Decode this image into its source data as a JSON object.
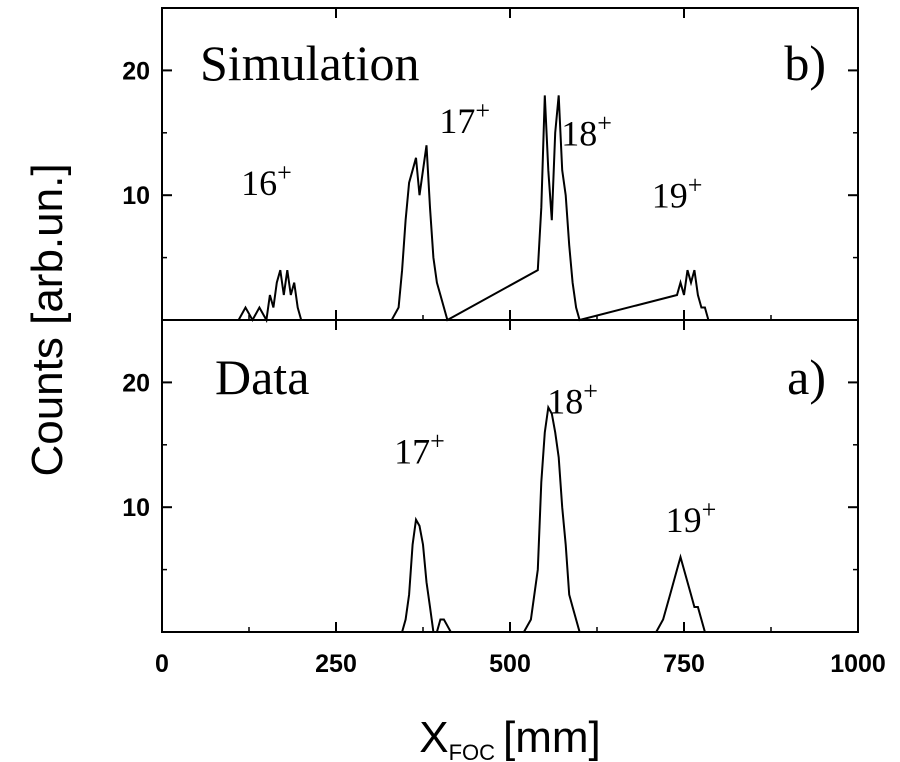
{
  "chart_data": [
    {
      "panel": "b",
      "type": "histogram",
      "title": "Simulation",
      "tag": "b)",
      "xlabel": "X",
      "xlabel_sub": "FOC",
      "xlabel_unit": "[mm]",
      "ylabel": "Counts [arb.un.]",
      "xlim": [
        0,
        1000
      ],
      "ylim": [
        0,
        25
      ],
      "xticks": [
        0,
        250,
        500,
        750,
        1000
      ],
      "yticks": [
        10,
        20
      ],
      "grid": false,
      "annotations": [
        {
          "text": "16",
          "sup": "+",
          "x": 150,
          "y": 10
        },
        {
          "text": "17",
          "sup": "+",
          "x": 435,
          "y": 15
        },
        {
          "text": "18",
          "sup": "+",
          "x": 610,
          "y": 14
        },
        {
          "text": "19",
          "sup": "+",
          "x": 740,
          "y": 9
        }
      ],
      "x": [
        110,
        120,
        130,
        140,
        150,
        155,
        160,
        165,
        170,
        175,
        180,
        185,
        190,
        195,
        200,
        330,
        340,
        345,
        350,
        355,
        360,
        365,
        370,
        375,
        380,
        385,
        390,
        395,
        400,
        405,
        410,
        540,
        545,
        550,
        555,
        560,
        565,
        570,
        575,
        580,
        585,
        590,
        595,
        600,
        740,
        745,
        750,
        755,
        760,
        765,
        770,
        775,
        780,
        785
      ],
      "y": [
        0,
        1,
        0,
        1,
        0,
        2,
        1,
        3,
        4,
        2,
        4,
        2,
        3,
        1,
        0,
        0,
        1,
        4,
        8,
        11,
        12,
        13,
        10,
        12,
        14,
        9,
        5,
        3,
        2,
        1,
        0,
        4,
        9,
        18,
        12,
        8,
        15,
        18,
        12,
        10,
        6,
        3,
        1,
        0,
        2,
        3,
        2,
        4,
        3,
        4,
        2,
        1,
        1,
        0
      ]
    },
    {
      "panel": "a",
      "type": "histogram",
      "title": "Data",
      "tag": "a)",
      "xlabel": "X",
      "xlabel_sub": "FOC",
      "xlabel_unit": "[mm]",
      "ylabel": "Counts [arb.un.]",
      "xlim": [
        0,
        1000
      ],
      "ylim": [
        0,
        25
      ],
      "xticks": [
        0,
        250,
        500,
        750,
        1000
      ],
      "yticks": [
        10,
        20
      ],
      "grid": false,
      "annotations": [
        {
          "text": "17",
          "sup": "+",
          "x": 370,
          "y": 13.5
        },
        {
          "text": "18",
          "sup": "+",
          "x": 590,
          "y": 17.5
        },
        {
          "text": "19",
          "sup": "+",
          "x": 760,
          "y": 8
        }
      ],
      "x": [
        345,
        350,
        355,
        360,
        365,
        370,
        375,
        380,
        385,
        390,
        395,
        400,
        405,
        410,
        415,
        520,
        530,
        540,
        545,
        550,
        555,
        560,
        565,
        570,
        575,
        580,
        585,
        590,
        595,
        600,
        710,
        720,
        730,
        740,
        745,
        750,
        755,
        760,
        765,
        770,
        775,
        780
      ],
      "y": [
        0,
        1,
        3,
        7,
        9,
        8.5,
        7,
        4,
        2,
        0,
        0,
        1,
        1,
        0.5,
        0,
        0,
        1,
        5,
        12,
        16,
        18,
        17.5,
        16,
        14,
        10,
        7,
        3,
        2,
        1,
        0,
        0,
        1,
        3,
        5,
        6,
        5,
        4,
        3,
        2,
        2,
        1,
        0
      ]
    }
  ]
}
